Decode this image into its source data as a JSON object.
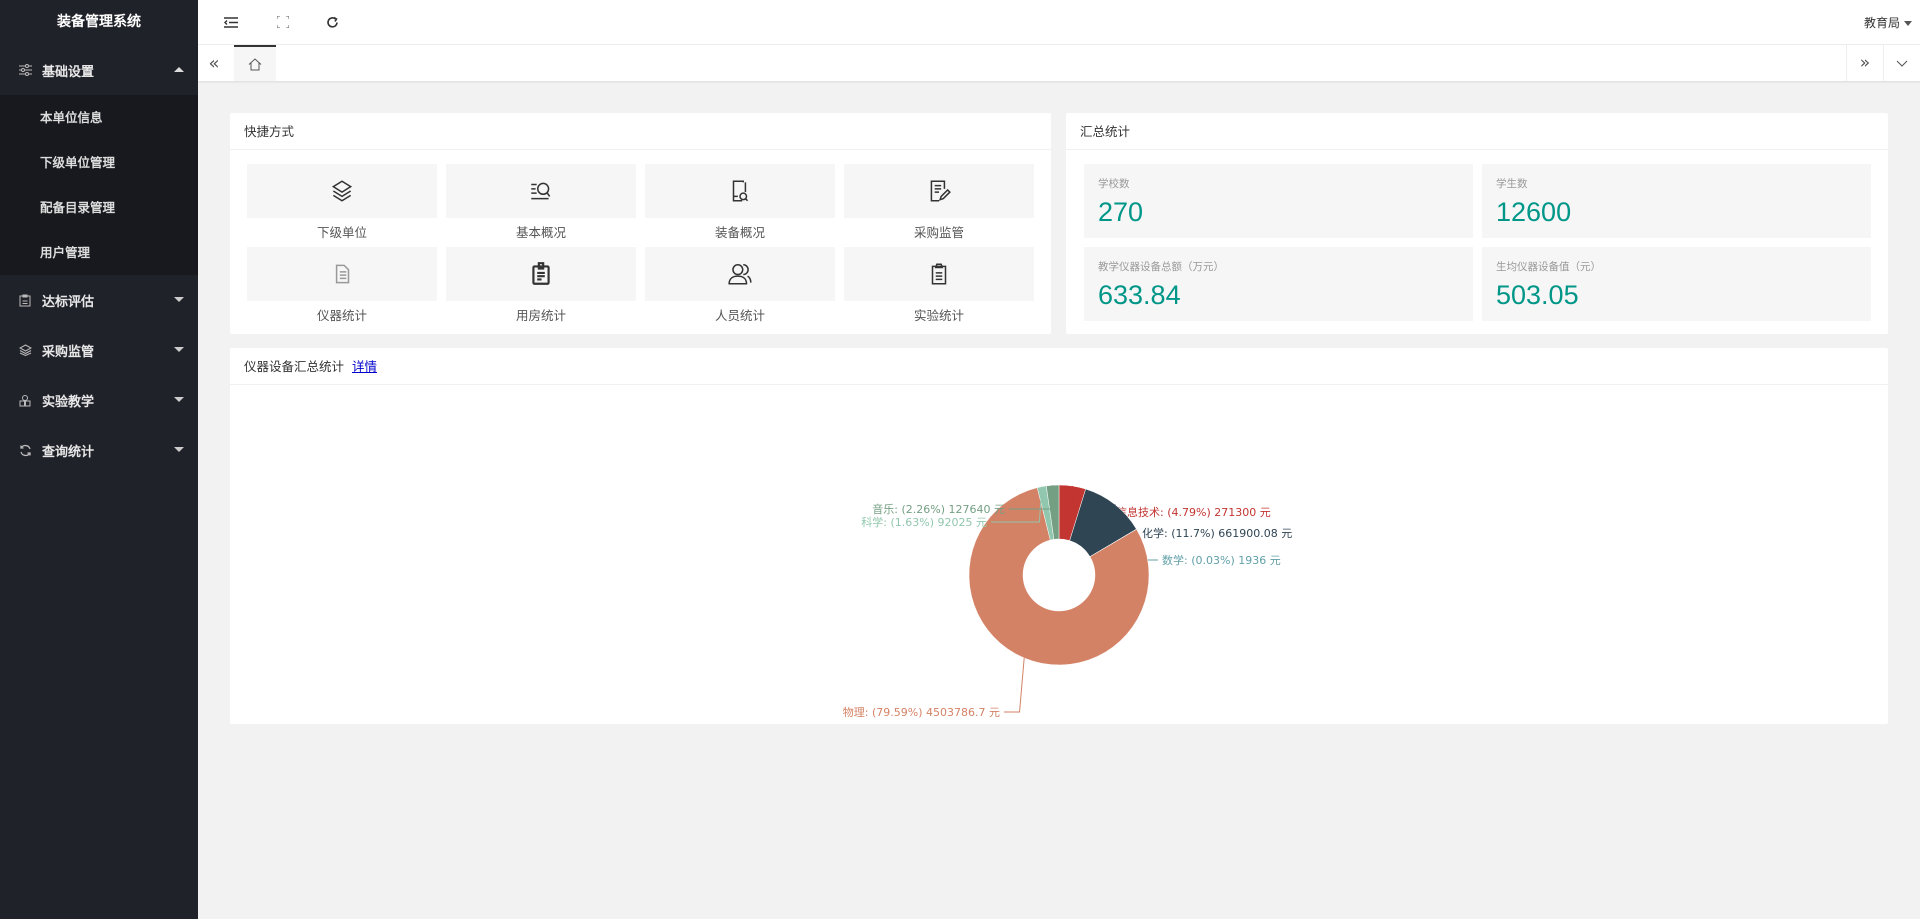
{
  "sidebar": {
    "title": "装备管理系统",
    "menus": [
      {
        "label": "基础设置",
        "icon": "sliders-icon",
        "expanded": true,
        "children": [
          "本单位信息",
          "下级单位管理",
          "配备目录管理",
          "用户管理"
        ]
      },
      {
        "label": "达标评估",
        "icon": "clipboard-icon",
        "expanded": false
      },
      {
        "label": "采购监管",
        "icon": "layers-icon",
        "expanded": false
      },
      {
        "label": "实验教学",
        "icon": "flask-icon",
        "expanded": false
      },
      {
        "label": "查询统计",
        "icon": "refresh-icon",
        "expanded": false
      }
    ]
  },
  "header": {
    "user": "教育局"
  },
  "shortcuts": {
    "title": "快捷方式",
    "items": [
      {
        "label": "下级单位",
        "icon": "layers-icon"
      },
      {
        "label": "基本概况",
        "icon": "search-list-icon"
      },
      {
        "label": "装备概况",
        "icon": "book-search-icon"
      },
      {
        "label": "采购监管",
        "icon": "edit-doc-icon"
      },
      {
        "label": "仪器统计",
        "icon": "document-list-icon"
      },
      {
        "label": "用房统计",
        "icon": "badge-icon"
      },
      {
        "label": "人员统计",
        "icon": "users-icon"
      },
      {
        "label": "实验统计",
        "icon": "clipboard-icon"
      }
    ]
  },
  "summary": {
    "title": "汇总统计",
    "stats": [
      {
        "label": "学校数",
        "value": "270"
      },
      {
        "label": "学生数",
        "value": "12600"
      },
      {
        "label": "教学仪器设备总额（万元）",
        "value": "633.84"
      },
      {
        "label": "生均仪器设备值（元）",
        "value": "503.05"
      }
    ],
    "value_color": "#009688"
  },
  "equipment": {
    "title": "仪器设备汇总统计",
    "link": "详情"
  },
  "chart_data": {
    "type": "pie",
    "donut": true,
    "unit": "元",
    "series": [
      {
        "name": "信息技术",
        "percent": "4.79%",
        "value": 271300,
        "value_text": "271300",
        "color": "#c23531"
      },
      {
        "name": "化学",
        "percent": "11.7%",
        "value": 661900.08,
        "value_text": "661900.08",
        "color": "#2f4554"
      },
      {
        "name": "数学",
        "percent": "0.03%",
        "value": 1936,
        "value_text": "1936",
        "color": "#61a0a8"
      },
      {
        "name": "物理",
        "percent": "79.59%",
        "value": 4503786.7,
        "value_text": "4503786.7",
        "color": "#d48265"
      },
      {
        "name": "科学",
        "percent": "1.63%",
        "value": 92025,
        "value_text": "92025",
        "color": "#91c7ae"
      },
      {
        "name": "音乐",
        "percent": "2.26%",
        "value": 127640,
        "value_text": "127640",
        "color": "#749f83"
      }
    ]
  }
}
